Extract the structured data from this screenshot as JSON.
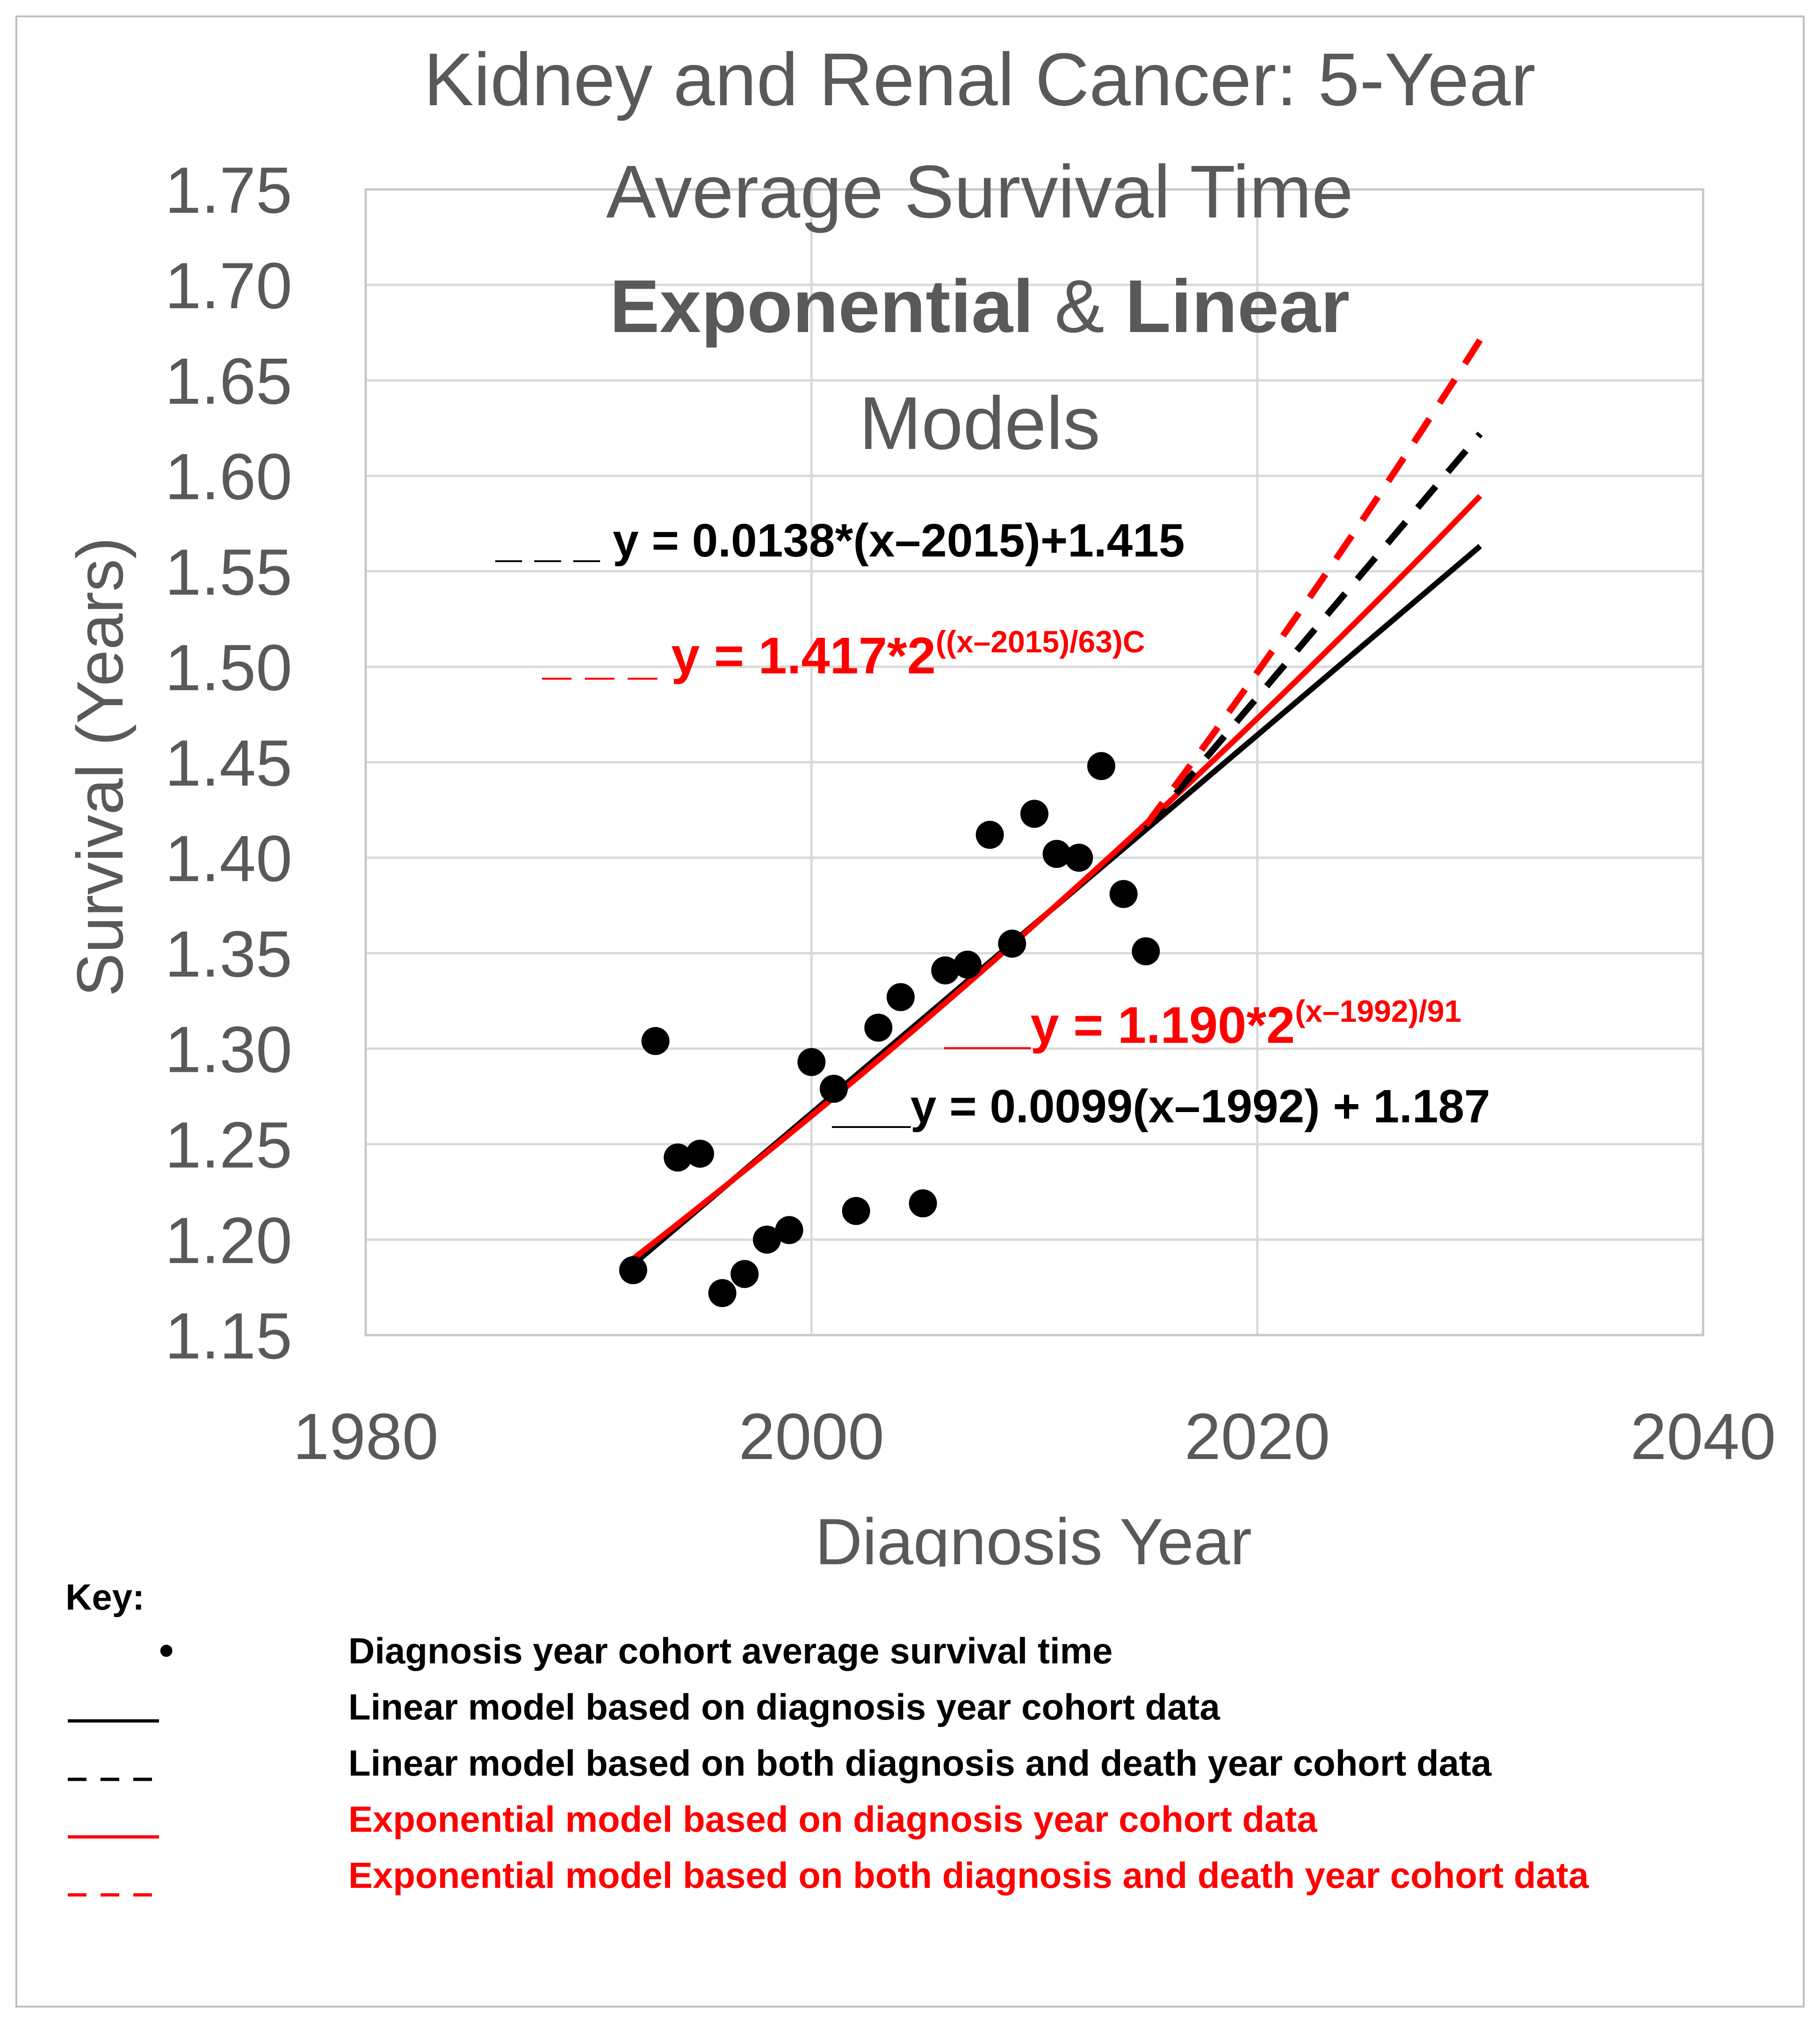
{
  "chart_data": {
    "type": "scatter",
    "title_lines": [
      "Kidney and Renal Cancer: 5-Year",
      "Average Survival Time"
    ],
    "subtitle": {
      "part1": "Exponential",
      "amp": " & ",
      "part2": "Linear",
      "line2": "Models"
    },
    "xlabel": "Diagnosis Year",
    "ylabel": "Survival (Years)",
    "xlim": [
      1980,
      2040
    ],
    "ylim": [
      1.15,
      1.75
    ],
    "x_ticks": [
      "1980",
      "2000",
      "2020",
      "2040"
    ],
    "y_ticks": [
      "1.15",
      "1.20",
      "1.25",
      "1.30",
      "1.35",
      "1.40",
      "1.45",
      "1.50",
      "1.55",
      "1.60",
      "1.65",
      "1.70",
      "1.75"
    ],
    "points": [
      {
        "x": 1992,
        "y": 1.184
      },
      {
        "x": 1993,
        "y": 1.304
      },
      {
        "x": 1994,
        "y": 1.243
      },
      {
        "x": 1995,
        "y": 1.245
      },
      {
        "x": 1996,
        "y": 1.172
      },
      {
        "x": 1997,
        "y": 1.182
      },
      {
        "x": 1998,
        "y": 1.2
      },
      {
        "x": 1999,
        "y": 1.205
      },
      {
        "x": 2000,
        "y": 1.293
      },
      {
        "x": 2001,
        "y": 1.279
      },
      {
        "x": 2002,
        "y": 1.215
      },
      {
        "x": 2003,
        "y": 1.311
      },
      {
        "x": 2004,
        "y": 1.327
      },
      {
        "x": 2005,
        "y": 1.219
      },
      {
        "x": 2006,
        "y": 1.341
      },
      {
        "x": 2007,
        "y": 1.344
      },
      {
        "x": 2008,
        "y": 1.412
      },
      {
        "x": 2009,
        "y": 1.355
      },
      {
        "x": 2010,
        "y": 1.423
      },
      {
        "x": 2011,
        "y": 1.402
      },
      {
        "x": 2012,
        "y": 1.4
      },
      {
        "x": 2013,
        "y": 1.448
      },
      {
        "x": 2014,
        "y": 1.381
      },
      {
        "x": 2015,
        "y": 1.351
      }
    ],
    "models": [
      {
        "name": "linear-diagnosis",
        "kind": "linear",
        "x0": 1992,
        "slope": 0.0099,
        "intercept": 1.187,
        "x_range": [
          1992,
          2030
        ],
        "color": "#000000",
        "dashed": false
      },
      {
        "name": "exponential-diagnosis",
        "kind": "exponential",
        "x0": 1992,
        "a": 1.19,
        "doubling": 91,
        "x_range": [
          1992,
          2030
        ],
        "color": "#ff0000",
        "dashed": false
      },
      {
        "name": "linear-both",
        "kind": "linear",
        "x0": 2015,
        "slope": 0.0138,
        "intercept": 1.415,
        "x_range": [
          2015,
          2030
        ],
        "color": "#000000",
        "dashed": true
      },
      {
        "name": "exponential-both",
        "kind": "exponential",
        "x0": 2015,
        "a": 1.417,
        "doubling": 63,
        "x_range": [
          2015,
          2030
        ],
        "color": "#ff0000",
        "dashed": true
      }
    ],
    "annotations": [
      {
        "name": "eq-linear-both",
        "prefix": "_ _ _ ",
        "text": "y = 0.0138*(x–2015)+1.415",
        "sup": "",
        "color": "#000000"
      },
      {
        "name": "eq-exp-both",
        "prefix": "_ _ _ ",
        "text": "y = 1.417*2",
        "sup": "((x–2015)/63)C",
        "color": "#ff0000"
      },
      {
        "name": "eq-exp-diagnosis",
        "prefix": "___",
        "text": "y = 1.190*2",
        "sup": "(x–1992)/91",
        "color": "#ff0000"
      },
      {
        "name": "eq-linear-diagnosis",
        "prefix": "___",
        "text": "y = 0.0099(x–1992) + 1.187",
        "sup": "",
        "color": "#000000"
      }
    ],
    "grid": true
  },
  "key": {
    "title": "Key:",
    "items": [
      {
        "symbol": "•",
        "label": "Diagnosis year cohort average survival time",
        "color": "#000000"
      },
      {
        "symbol": "____",
        "label": "Linear model based on diagnosis year cohort data",
        "color": "#000000"
      },
      {
        "symbol": "_ _ _",
        "label": "Linear model based on both diagnosis and death year cohort data",
        "color": "#000000"
      },
      {
        "symbol": "____",
        "label": "Exponential model based on diagnosis year cohort data",
        "color": "#ff0000"
      },
      {
        "symbol": "_ _ _",
        "label": "Exponential model based on both diagnosis and death year cohort data",
        "color": "#ff0000"
      }
    ]
  }
}
